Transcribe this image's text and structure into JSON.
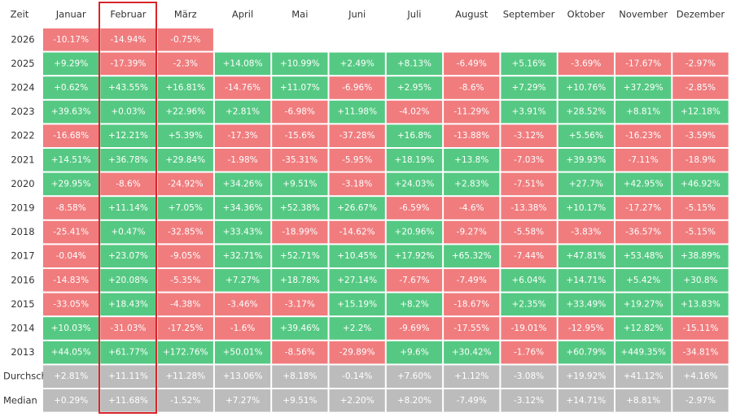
{
  "table": {
    "header": [
      "Zeit",
      "Januar",
      "Februar",
      "März",
      "April",
      "Mai",
      "Juni",
      "Juli",
      "August",
      "September",
      "Oktober",
      "November",
      "Dezember"
    ],
    "rows": [
      {
        "label": "2026",
        "cells": [
          "-10.17%",
          "-14.94%",
          "-0.75%"
        ]
      },
      {
        "label": "2025",
        "cells": [
          "+9.29%",
          "-17.39%",
          "-2.3%",
          "+14.08%",
          "+10.99%",
          "+2.49%",
          "+8.13%",
          "-6.49%",
          "+5.16%",
          "-3.69%",
          "-17.67%",
          "-2.97%"
        ]
      },
      {
        "label": "2024",
        "cells": [
          "+0.62%",
          "+43.55%",
          "+16.81%",
          "-14.76%",
          "+11.07%",
          "-6.96%",
          "+2.95%",
          "-8.6%",
          "+7.29%",
          "+10.76%",
          "+37.29%",
          "-2.85%"
        ]
      },
      {
        "label": "2023",
        "cells": [
          "+39.63%",
          "+0.03%",
          "+22.96%",
          "+2.81%",
          "-6.98%",
          "+11.98%",
          "-4.02%",
          "-11.29%",
          "+3.91%",
          "+28.52%",
          "+8.81%",
          "+12.18%"
        ]
      },
      {
        "label": "2022",
        "cells": [
          "-16.68%",
          "+12.21%",
          "+5.39%",
          "-17.3%",
          "-15.6%",
          "-37.28%",
          "+16.8%",
          "-13.88%",
          "-3.12%",
          "+5.56%",
          "-16.23%",
          "-3.59%"
        ]
      },
      {
        "label": "2021",
        "cells": [
          "+14.51%",
          "+36.78%",
          "+29.84%",
          "-1.98%",
          "-35.31%",
          "-5.95%",
          "+18.19%",
          "+13.8%",
          "-7.03%",
          "+39.93%",
          "-7.11%",
          "-18.9%"
        ]
      },
      {
        "label": "2020",
        "cells": [
          "+29.95%",
          "-8.6%",
          "-24.92%",
          "+34.26%",
          "+9.51%",
          "-3.18%",
          "+24.03%",
          "+2.83%",
          "-7.51%",
          "+27.7%",
          "+42.95%",
          "+46.92%"
        ]
      },
      {
        "label": "2019",
        "cells": [
          "-8.58%",
          "+11.14%",
          "+7.05%",
          "+34.36%",
          "+52.38%",
          "+26.67%",
          "-6.59%",
          "-4.6%",
          "-13.38%",
          "+10.17%",
          "-17.27%",
          "-5.15%"
        ]
      },
      {
        "label": "2018",
        "cells": [
          "-25.41%",
          "+0.47%",
          "-32.85%",
          "+33.43%",
          "-18.99%",
          "-14.62%",
          "+20.96%",
          "-9.27%",
          "-5.58%",
          "-3.83%",
          "-36.57%",
          "-5.15%"
        ]
      },
      {
        "label": "2017",
        "cells": [
          "-0.04%",
          "+23.07%",
          "-9.05%",
          "+32.71%",
          "+52.71%",
          "+10.45%",
          "+17.92%",
          "+65.32%",
          "-7.44%",
          "+47.81%",
          "+53.48%",
          "+38.89%"
        ]
      },
      {
        "label": "2016",
        "cells": [
          "-14.83%",
          "+20.08%",
          "-5.35%",
          "+7.27%",
          "+18.78%",
          "+27.14%",
          "-7.67%",
          "-7.49%",
          "+6.04%",
          "+14.71%",
          "+5.42%",
          "+30.8%"
        ]
      },
      {
        "label": "2015",
        "cells": [
          "-33.05%",
          "+18.43%",
          "-4.38%",
          "-3.46%",
          "-3.17%",
          "+15.19%",
          "+8.2%",
          "-18.67%",
          "+2.35%",
          "+33.49%",
          "+19.27%",
          "+13.83%"
        ]
      },
      {
        "label": "2014",
        "cells": [
          "+10.03%",
          "-31.03%",
          "-17.25%",
          "-1.6%",
          "+39.46%",
          "+2.2%",
          "-9.69%",
          "-17.55%",
          "-19.01%",
          "-12.95%",
          "+12.82%",
          "-15.11%"
        ]
      },
      {
        "label": "2013",
        "cells": [
          "+44.05%",
          "+61.77%",
          "+172.76%",
          "+50.01%",
          "-8.56%",
          "-29.89%",
          "+9.6%",
          "+30.42%",
          "-1.76%",
          "+60.79%",
          "+449.35%",
          "-34.81%"
        ]
      }
    ],
    "summary_rows": [
      {
        "label": "Durchschnitt",
        "cells": [
          "+2.81%",
          "+11.11%",
          "+11.28%",
          "+13.06%",
          "+8.18%",
          "-0.14%",
          "+7.60%",
          "+1.12%",
          "-3.08%",
          "+19.92%",
          "+41.12%",
          "+4.16%"
        ]
      },
      {
        "label": "Median",
        "cells": [
          "+0.29%",
          "+11.68%",
          "-1.52%",
          "+7.27%",
          "+9.51%",
          "+2.20%",
          "+8.20%",
          "-7.49%",
          "-3.12%",
          "+14.71%",
          "+8.81%",
          "-2.97%"
        ]
      }
    ]
  }
}
